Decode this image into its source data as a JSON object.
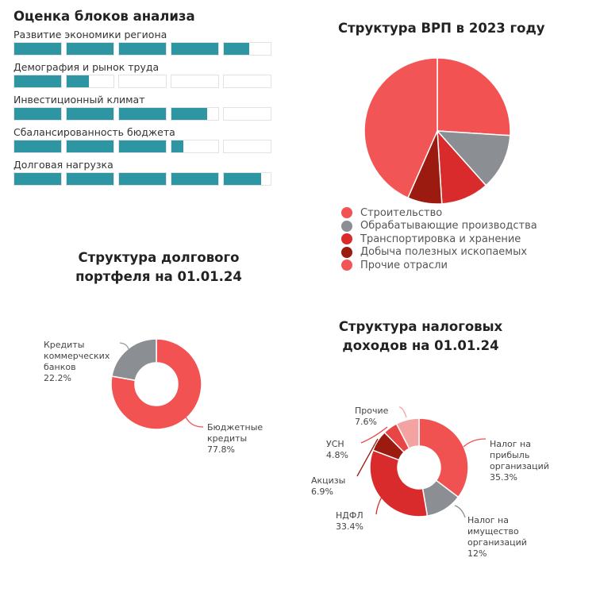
{
  "blocks": {
    "title": "Оценка блоков анализа",
    "max": 5,
    "fill_color": "#2e96a3",
    "items": [
      {
        "label": "Развитие экономики региона",
        "score": 4.55
      },
      {
        "label": "Демография и рынок труда",
        "score": 1.47
      },
      {
        "label": "Инвестиционный климат",
        "score": 3.76
      },
      {
        "label": "Сбалансированность бюджета",
        "score": 3.26
      },
      {
        "label": "Долговая нагрузка",
        "score": 4.79
      }
    ]
  },
  "chart_data": [
    {
      "type": "pie",
      "title": "Структура ВРП в 2023 году",
      "legend": "bottom",
      "categories": [
        "Строительство",
        "Обрабатывающие производства",
        "Транспортировка и хранение",
        "Добыча полезных ископаемых",
        "Прочие отрасли"
      ],
      "values": [
        26,
        12.4,
        10.6,
        7.6,
        43.4
      ],
      "colors": [
        "#f25252",
        "#8b8e92",
        "#d92b2b",
        "#9b1b10",
        "#f25555"
      ]
    },
    {
      "type": "pie",
      "donut": true,
      "title_lines": [
        "Структура долгового",
        "портфеля на 01.01.24"
      ],
      "categories": [
        "Бюджетные кредиты",
        "Кредиты коммерческих банков"
      ],
      "label_texts": [
        "Бюджетные\nкредиты\n77.8%",
        "Кредиты\nкоммерческих\nбанков\n22.2%"
      ],
      "values": [
        77.8,
        22.2
      ],
      "colors": [
        "#f25252",
        "#8b8e92"
      ]
    },
    {
      "type": "pie",
      "donut": true,
      "title_lines": [
        "Структура налоговых",
        "доходов на 01.01.24"
      ],
      "categories": [
        "Налог на прибыль организаций",
        "Налог на имущество организаций",
        "НДФЛ",
        "Акцизы",
        "УСН",
        "Прочие"
      ],
      "label_texts": [
        "Налог на\nприбыль\nорганизаций\n35.3%",
        "Налог на\nимущество\nорганизаций\n12%",
        "НДФЛ\n33.4%",
        "Акцизы\n6.9%",
        "УСН\n4.8%",
        "Прочие\n7.6%"
      ],
      "values": [
        35.3,
        12,
        33.4,
        6.9,
        4.8,
        7.6
      ],
      "colors": [
        "#f05252",
        "#8b8e92",
        "#d92b2b",
        "#9b1b10",
        "#e84545",
        "#f4a3a3"
      ]
    }
  ]
}
